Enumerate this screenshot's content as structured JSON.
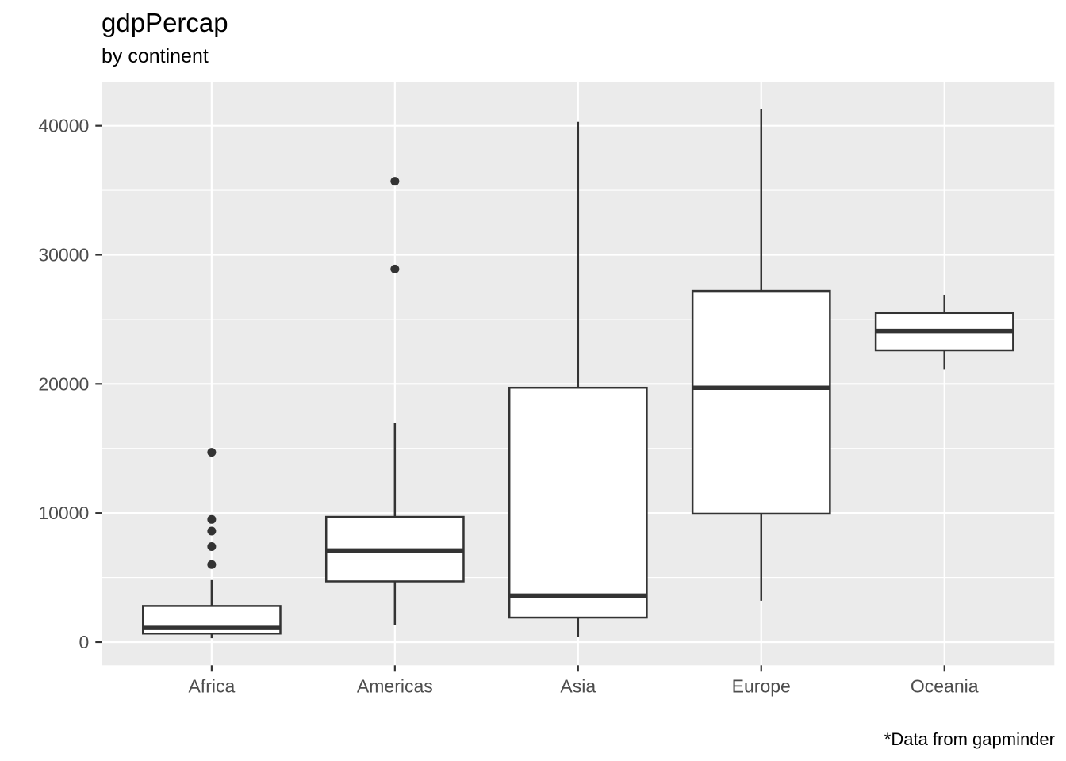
{
  "chart_data": {
    "type": "boxplot",
    "title": "gdpPercap",
    "subtitle": "by continent",
    "caption": "*Data from gapminder",
    "xlabel": "",
    "ylabel": "",
    "categories": [
      "Africa",
      "Americas",
      "Asia",
      "Europe",
      "Oceania"
    ],
    "series": [
      {
        "name": "Africa",
        "whisker_low": 300,
        "q1": 660,
        "median": 1100,
        "q3": 2800,
        "whisker_high": 4800,
        "outliers": [
          6000,
          7400,
          8600,
          9500,
          14700
        ]
      },
      {
        "name": "Americas",
        "whisker_low": 1300,
        "q1": 4700,
        "median": 7100,
        "q3": 9700,
        "whisker_high": 17000,
        "outliers": [
          28900,
          35700
        ]
      },
      {
        "name": "Asia",
        "whisker_low": 400,
        "q1": 1900,
        "median": 3600,
        "q3": 19700,
        "whisker_high": 40300,
        "outliers": []
      },
      {
        "name": "Europe",
        "whisker_low": 3200,
        "q1": 9950,
        "median": 19700,
        "q3": 27200,
        "whisker_high": 41300,
        "outliers": []
      },
      {
        "name": "Oceania",
        "whisker_low": 21100,
        "q1": 22600,
        "median": 24100,
        "q3": 25500,
        "whisker_high": 26900,
        "outliers": []
      }
    ],
    "y_ticks": [
      0,
      10000,
      20000,
      30000,
      40000
    ],
    "y_minor_ticks": [
      5000,
      15000,
      25000,
      35000
    ],
    "ylim": [
      -1800,
      43400
    ],
    "grid": true,
    "legend": false,
    "style": {
      "panel_bg": "#EBEBEB",
      "grid_color": "#FFFFFF",
      "box_fill": "#FFFFFF",
      "line_color": "#333333",
      "axis_text_color": "#4D4D4D",
      "title_color": "#000000"
    }
  }
}
